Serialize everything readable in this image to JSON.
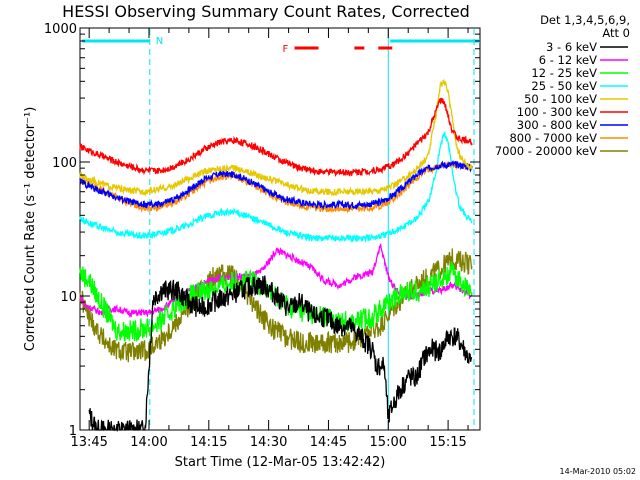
{
  "chart_data": {
    "type": "line",
    "title": "HESSI Observing Summary Count Rates, Corrected",
    "xlabel": "Start Time (12-Mar-05 13:42:42)",
    "ylabel": "Corrected Count Rate (s⁻¹ detector⁻¹)",
    "x_ticks": [
      "13:45",
      "14:00",
      "14:15",
      "14:30",
      "14:45",
      "15:00",
      "15:15"
    ],
    "x_tick_minutes": [
      45,
      60,
      75,
      90,
      105,
      120,
      135
    ],
    "xlim_minutes": [
      42.7,
      143
    ],
    "y_scale": "log",
    "ylim": [
      1,
      1000
    ],
    "y_ticks": [
      "1",
      "10",
      "100",
      "1000"
    ],
    "y_tick_values": [
      1,
      10,
      100,
      1000
    ],
    "legend_header": [
      "Det 1,3,4,5,6,9,",
      "Att 0"
    ],
    "legend_position": "right",
    "footer": "14-Mar-2010 05:02",
    "markers": {
      "N_label": "N",
      "F_label": "F",
      "night_intervals": [
        [
          42.7,
          60.2
        ],
        [
          120.0,
          143.0
        ]
      ],
      "night_color": "#00e5ee",
      "dashed_lines": [
        60.2,
        141.5
      ],
      "solid_line": 120.0,
      "flare_intervals": [
        [
          96.5,
          102.5
        ],
        [
          111.5,
          114.0
        ],
        [
          117.5,
          121.0
        ]
      ],
      "flare_color": "#ff0000"
    },
    "series": [
      {
        "name": "3 - 6 keV",
        "color": "#000000",
        "x": [
          45,
          47,
          50,
          55,
          59,
          60,
          61,
          63,
          67,
          70,
          73,
          76,
          80,
          83,
          86,
          89,
          92,
          95,
          98,
          101,
          104,
          107,
          110,
          113,
          116,
          117,
          119,
          120,
          121,
          123,
          125,
          127,
          129,
          131,
          133,
          135,
          137,
          139,
          141
        ],
        "y": [
          1.3,
          1.0,
          1.0,
          1.0,
          1.0,
          3.0,
          9.5,
          11,
          11,
          9,
          8,
          9,
          10,
          11,
          12,
          12,
          10,
          8,
          9,
          7,
          7,
          6,
          6,
          5,
          4,
          3,
          3,
          1.2,
          1.5,
          2.0,
          2.5,
          2.4,
          3.5,
          4,
          3.8,
          5,
          5,
          4,
          3
        ]
      },
      {
        "name": "6 - 12 keV",
        "color": "#ff00ff",
        "x": [
          42.7,
          44,
          46,
          48,
          50,
          52,
          55,
          58,
          60,
          63,
          66,
          70,
          75,
          80,
          85,
          88,
          90,
          92,
          95,
          98,
          101,
          104,
          108,
          112,
          116,
          118,
          120,
          122,
          124,
          127,
          130,
          133,
          136,
          139,
          141
        ],
        "y": [
          10,
          8.5,
          8.0,
          7.5,
          8,
          8,
          7.5,
          7.5,
          7.5,
          8,
          9,
          11,
          13,
          14,
          14,
          15,
          18,
          22,
          20,
          18,
          16,
          13,
          12,
          14,
          15,
          24,
          14,
          11,
          10,
          10,
          11,
          11,
          12,
          11,
          10
        ]
      },
      {
        "name": "12 - 25 keV",
        "color": "#00ff00",
        "x": [
          42.7,
          45,
          47,
          50,
          52,
          56,
          60,
          63,
          66,
          70,
          74,
          78,
          82,
          86,
          88,
          92,
          96,
          100,
          104,
          108,
          112,
          116,
          120,
          122,
          125,
          128,
          131,
          134,
          136,
          138,
          140,
          141
        ],
        "y": [
          15,
          13,
          10,
          7,
          5.5,
          5.5,
          5.8,
          6.5,
          8,
          10,
          11,
          12,
          13,
          13,
          12,
          10,
          8,
          7.5,
          7,
          6.5,
          6.5,
          7,
          9,
          10,
          11,
          11,
          12,
          14,
          15,
          13,
          11,
          10
        ]
      },
      {
        "name": "25 - 50 keV",
        "color": "#00ffff",
        "x": [
          42.7,
          46,
          50,
          54,
          58,
          62,
          66,
          70,
          74,
          78,
          82,
          86,
          90,
          94,
          98,
          102,
          106,
          110,
          114,
          118,
          121,
          124,
          127,
          130,
          132,
          133,
          134,
          135,
          136,
          137,
          138,
          140,
          141
        ],
        "y": [
          38,
          34,
          31,
          29,
          28,
          29,
          31,
          34,
          39,
          42,
          42,
          38,
          34,
          30,
          28,
          27,
          27,
          27,
          27,
          28,
          30,
          33,
          38,
          50,
          85,
          130,
          160,
          140,
          90,
          60,
          45,
          38,
          35
        ]
      },
      {
        "name": "50 - 100 keV",
        "color": "#e6c800",
        "x": [
          42.7,
          46,
          50,
          54,
          58,
          62,
          66,
          70,
          74,
          78,
          82,
          86,
          90,
          94,
          98,
          102,
          106,
          110,
          114,
          118,
          121,
          124,
          127,
          130,
          132,
          133,
          134,
          135,
          136,
          137,
          138,
          140,
          141
        ],
        "y": [
          80,
          72,
          66,
          62,
          60,
          62,
          66,
          75,
          85,
          90,
          90,
          82,
          75,
          68,
          63,
          60,
          60,
          60,
          60,
          62,
          66,
          75,
          88,
          110,
          230,
          370,
          400,
          330,
          220,
          140,
          110,
          95,
          90
        ]
      },
      {
        "name": "100 - 300 keV",
        "color": "#ff0000",
        "x": [
          42.7,
          46,
          50,
          54,
          58,
          62,
          66,
          70,
          74,
          78,
          82,
          86,
          90,
          94,
          98,
          102,
          106,
          110,
          114,
          118,
          121,
          124,
          127,
          130,
          132,
          133,
          134,
          135,
          136,
          137,
          138,
          140,
          141
        ],
        "y": [
          130,
          118,
          105,
          95,
          88,
          85,
          92,
          105,
          125,
          142,
          145,
          132,
          115,
          100,
          90,
          85,
          84,
          84,
          85,
          88,
          95,
          110,
          135,
          165,
          240,
          290,
          280,
          220,
          175,
          155,
          148,
          145,
          140
        ]
      },
      {
        "name": "300 - 800 keV",
        "color": "#0000ff",
        "x": [
          42.7,
          46,
          50,
          54,
          58,
          62,
          66,
          70,
          74,
          78,
          82,
          86,
          90,
          94,
          98,
          102,
          106,
          110,
          114,
          118,
          121,
          124,
          127,
          130,
          133,
          136,
          139,
          141
        ],
        "y": [
          72,
          64,
          57,
          52,
          48,
          48,
          52,
          62,
          75,
          82,
          80,
          70,
          60,
          53,
          50,
          48,
          48,
          48,
          48,
          50,
          56,
          66,
          80,
          90,
          95,
          96,
          94,
          90
        ]
      },
      {
        "name": "800 - 7000 keV",
        "color": "#ff8c00",
        "x": [
          42.7,
          46,
          50,
          54,
          58,
          62,
          66,
          70,
          74,
          78,
          82,
          86,
          90,
          94,
          98,
          102,
          106,
          110,
          114,
          118,
          121,
          124,
          127,
          130,
          133,
          136,
          139,
          141
        ],
        "y": [
          75,
          66,
          58,
          51,
          46,
          45,
          49,
          58,
          70,
          78,
          77,
          68,
          58,
          51,
          47,
          45,
          45,
          45,
          45,
          47,
          52,
          62,
          76,
          88,
          94,
          96,
          94,
          91
        ]
      },
      {
        "name": "7000 - 20000 keV",
        "color": "#808000",
        "x": [
          42.7,
          45,
          48,
          51,
          54,
          57,
          60,
          64,
          68,
          72,
          75,
          78,
          81,
          84,
          87,
          90,
          94,
          98,
          102,
          106,
          110,
          114,
          118,
          121,
          124,
          127,
          130,
          133,
          136,
          139,
          141
        ],
        "y": [
          10,
          7,
          5,
          4,
          3.8,
          3.8,
          4,
          5,
          7,
          10,
          13,
          15,
          14,
          11,
          8,
          6,
          5,
          4.5,
          4.5,
          4.5,
          4.5,
          5,
          6,
          8,
          10,
          12,
          14,
          16,
          19,
          18,
          17
        ]
      }
    ]
  }
}
